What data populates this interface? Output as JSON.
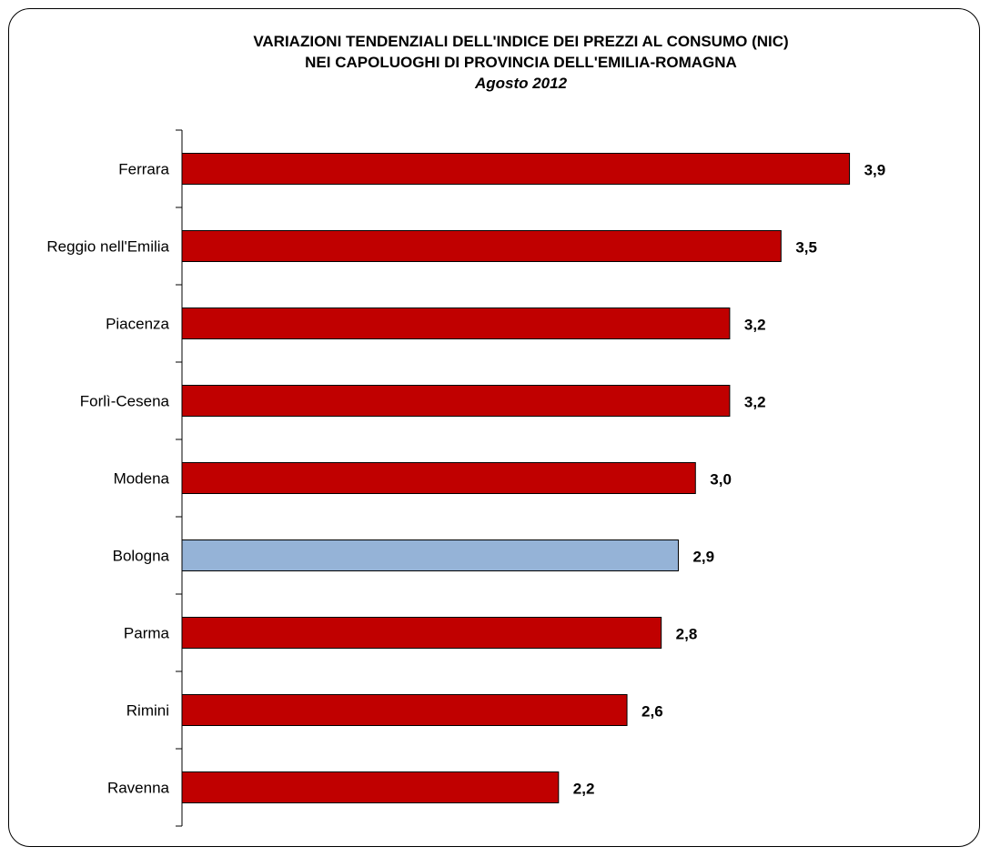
{
  "chart_data": {
    "type": "bar",
    "orientation": "horizontal",
    "title_lines": [
      "VARIAZIONI TENDENZIALI DELL'INDICE DEI PREZZI AL CONSUMO (NIC)",
      "NEI CAPOLUOGHI DI PROVINCIA DELL'EMILIA-ROMAGNA"
    ],
    "subtitle": "Agosto 2012",
    "categories": [
      "Ferrara",
      "Reggio nell'Emilia",
      "Piacenza",
      "Forlì-Cesena",
      "Modena",
      "Bologna",
      "Parma",
      "Rimini",
      "Ravenna"
    ],
    "values": [
      3.9,
      3.5,
      3.2,
      3.2,
      3.0,
      2.9,
      2.8,
      2.6,
      2.2
    ],
    "value_labels": [
      "3,9",
      "3,5",
      "3,2",
      "3,2",
      "3,0",
      "2,9",
      "2,8",
      "2,6",
      "2,2"
    ],
    "xlim": [
      0,
      4.2
    ],
    "grid": false,
    "legend": "none",
    "colors": {
      "default_bar": "#C00000",
      "highlight_bar": "#95B3D7",
      "bar_border": "#000000"
    },
    "highlight_category": "Bologna"
  }
}
